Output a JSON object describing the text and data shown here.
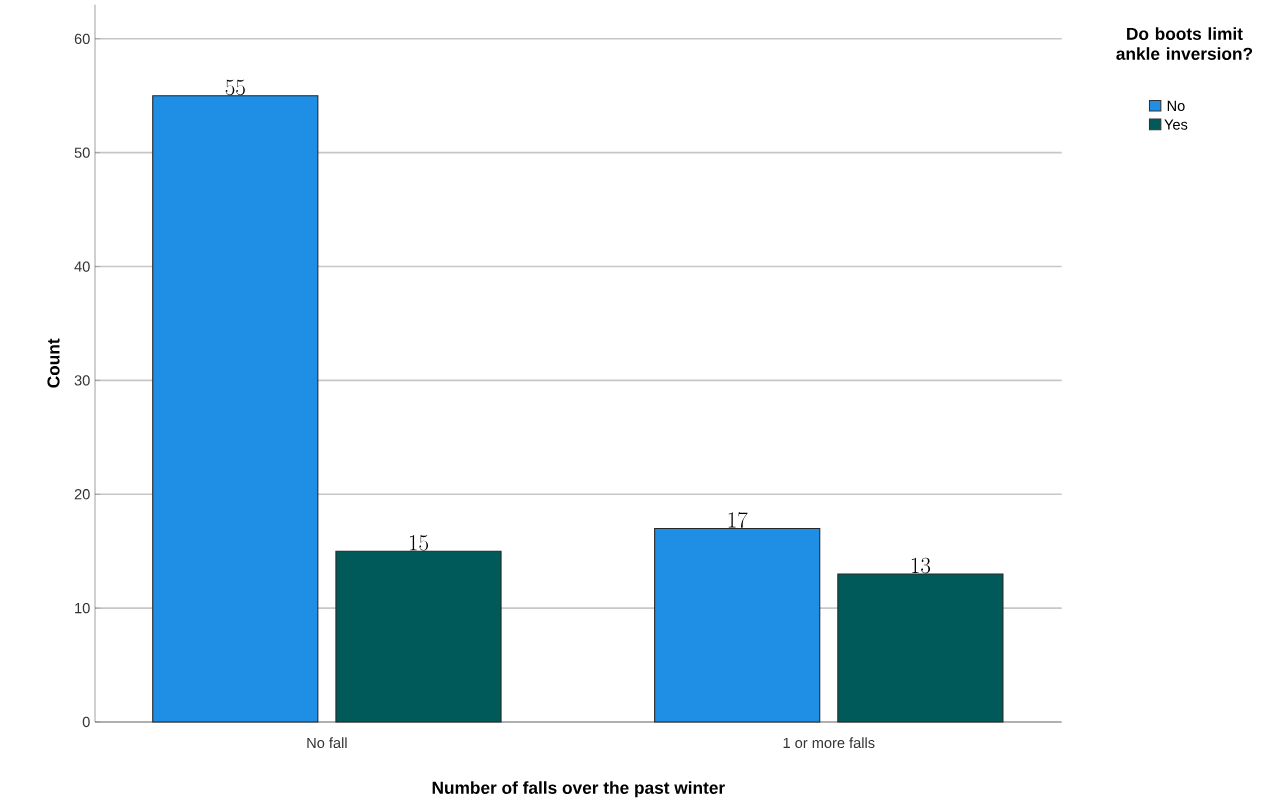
{
  "chart_data": {
    "type": "bar",
    "xlabel": "Number of falls over the past winter",
    "ylabel": "Count",
    "legend_title": "Do boots limit ankle inversion?",
    "categories": [
      "No fall",
      "1 or more falls"
    ],
    "series": [
      {
        "name": "No",
        "color": "#1f8fe6",
        "values": [
          55,
          17
        ]
      },
      {
        "name": "Yes",
        "color": "#005a5a",
        "values": [
          15,
          13
        ]
      }
    ],
    "ylim": [
      0,
      63
    ],
    "yticks": [
      0,
      10,
      20,
      30,
      40,
      50,
      60
    ],
    "grid": "y",
    "legend": "top right",
    "data_labels": true
  }
}
